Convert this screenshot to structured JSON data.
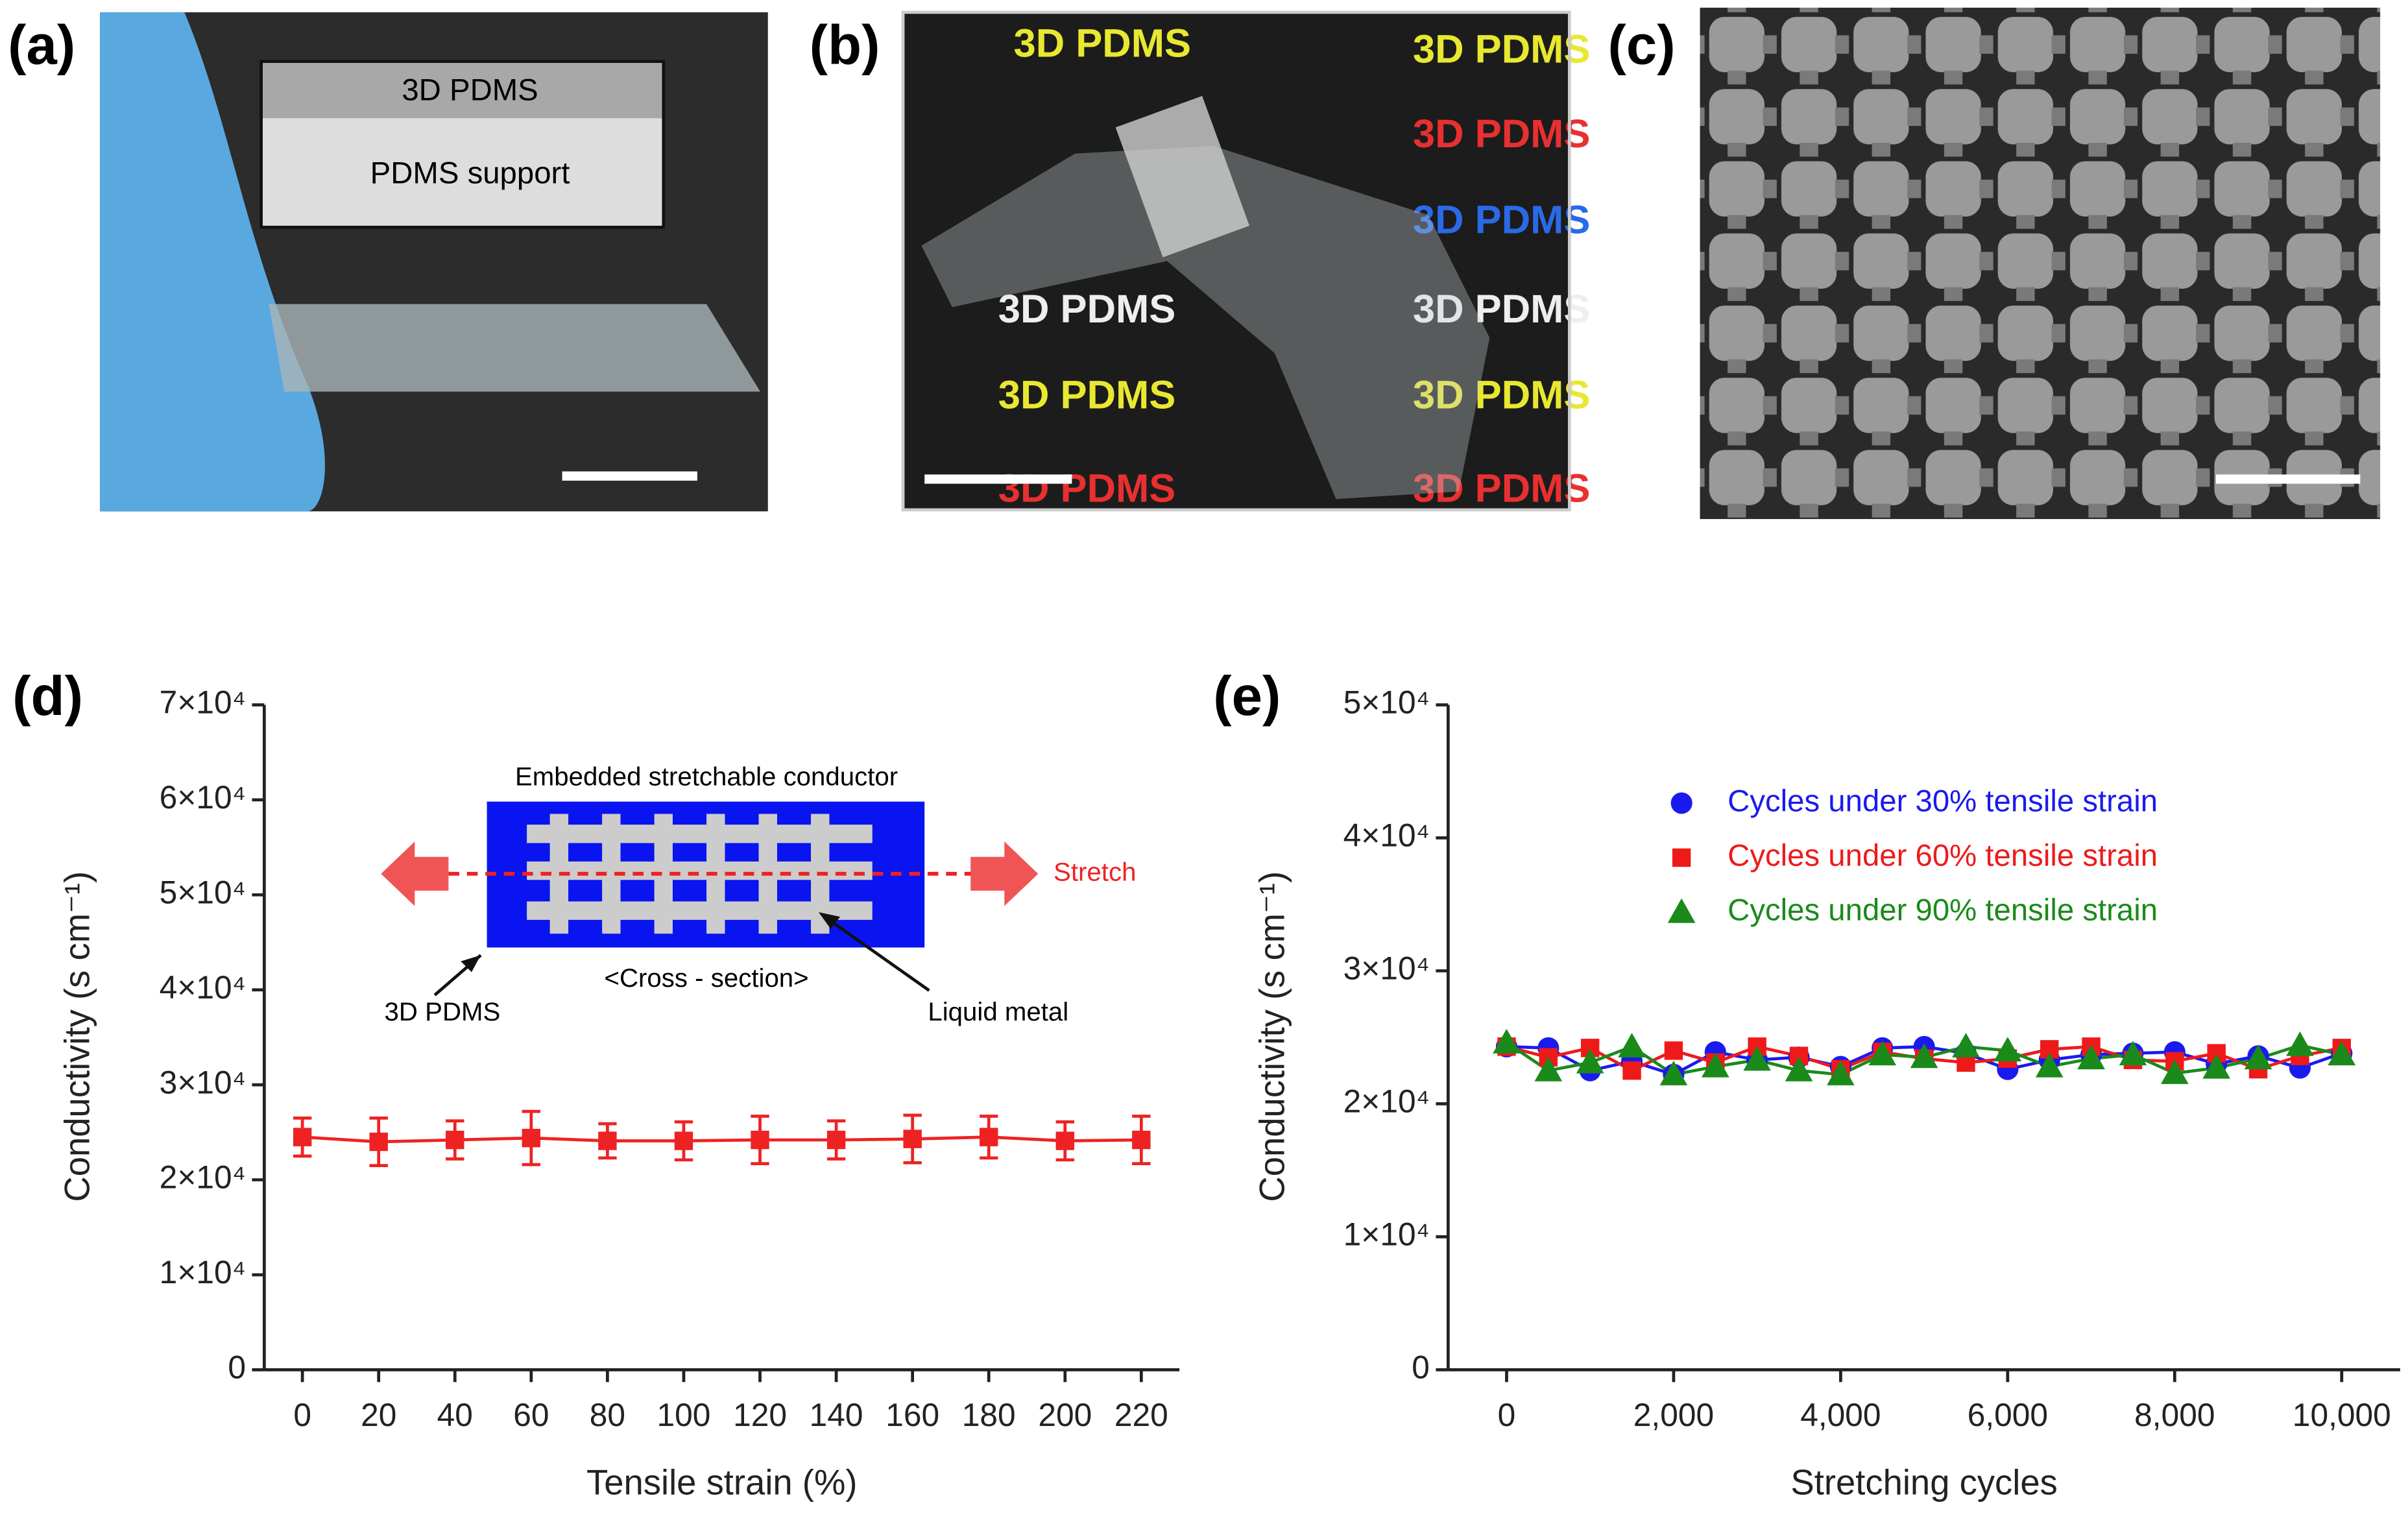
{
  "panels": {
    "a": {
      "label": "(a)",
      "inset": [
        "3D PDMS",
        "PDMS support"
      ]
    },
    "b": {
      "label": "(b)",
      "overlay_text": "3D PDMS"
    },
    "c": {
      "label": "(c)"
    },
    "d": {
      "label": "(d)"
    },
    "e": {
      "label": "(e)"
    }
  },
  "chart_data": [
    {
      "type": "line",
      "x_label": "Tensile strain (%)",
      "y_label": "Conductivity (s cm⁻¹)",
      "marker": "square",
      "color": "#ee2222",
      "x": [
        0,
        20,
        40,
        60,
        80,
        100,
        120,
        140,
        160,
        180,
        200,
        220
      ],
      "values": [
        24500,
        24000,
        24200,
        24400,
        24100,
        24100,
        24200,
        24200,
        24300,
        24500,
        24100,
        24200
      ],
      "errors": [
        2000,
        2500,
        2000,
        2800,
        1800,
        2000,
        2500,
        2000,
        2500,
        2200,
        2000,
        2500
      ],
      "xlim": [
        -10,
        230
      ],
      "xticks": [
        0,
        20,
        40,
        60,
        80,
        100,
        120,
        140,
        160,
        180,
        200,
        220
      ],
      "ylim": [
        0,
        70000
      ],
      "yticks": [
        0,
        {
          "value": 10000,
          "label": "1×10⁴"
        },
        {
          "value": 20000,
          "label": "2×10⁴"
        },
        {
          "value": 30000,
          "label": "3×10⁴"
        },
        {
          "value": 40000,
          "label": "4×10⁴"
        },
        {
          "value": 50000,
          "label": "5×10⁴"
        },
        {
          "value": 60000,
          "label": "6×10⁴"
        },
        {
          "value": 70000,
          "label": "7×10⁴"
        }
      ],
      "annotations": [
        "Embedded stretchable conductor",
        "Stretch",
        "3D PDMS",
        "<Cross - section>",
        "Liquid metal"
      ]
    },
    {
      "type": "line",
      "x_label": "Stretching cycles",
      "y_label": "Conductivity (s cm⁻¹)",
      "x": [
        0,
        500,
        1000,
        1500,
        2000,
        2500,
        3000,
        3500,
        4000,
        4500,
        5000,
        5500,
        6000,
        6500,
        7000,
        7500,
        8000,
        8500,
        9000,
        9500,
        10000
      ],
      "series": [
        {
          "name": "Cycles under 30% tensile strain",
          "color": "#1a1aee",
          "marker": "circle",
          "values": [
            24300,
            24200,
            22500,
            23200,
            22200,
            23900,
            23300,
            23500,
            22800,
            24200,
            24300,
            23800,
            22600,
            23300,
            23700,
            23800,
            23900,
            23000,
            23600,
            22700,
            23800
          ]
        },
        {
          "name": "Cycles under 60% tensile strain",
          "color": "#ee1a1a",
          "marker": "square",
          "values": [
            24300,
            23500,
            24200,
            22500,
            24000,
            23100,
            24300,
            23600,
            22600,
            23900,
            23400,
            23100,
            23400,
            24100,
            24300,
            23300,
            23200,
            23800,
            22600,
            23600,
            24200
          ]
        },
        {
          "name": "Cycles under 90% tensile strain",
          "color": "#1a8a1a",
          "marker": "triangle",
          "values": [
            24600,
            22500,
            23100,
            24300,
            22200,
            22800,
            23300,
            22500,
            22200,
            23700,
            23500,
            24300,
            24000,
            22800,
            23400,
            23700,
            22300,
            22700,
            23400,
            24400,
            23700
          ]
        }
      ],
      "xlim": [
        -700,
        10700
      ],
      "xticks": [
        0,
        {
          "value": 2000,
          "label": "2,000"
        },
        {
          "value": 4000,
          "label": "4,000"
        },
        {
          "value": 6000,
          "label": "6,000"
        },
        {
          "value": 8000,
          "label": "8,000"
        },
        {
          "value": 10000,
          "label": "10,000"
        }
      ],
      "ylim": [
        0,
        50000
      ],
      "yticks": [
        0,
        {
          "value": 10000,
          "label": "1×10⁴"
        },
        {
          "value": 20000,
          "label": "2×10⁴"
        },
        {
          "value": 30000,
          "label": "3×10⁴"
        },
        {
          "value": 40000,
          "label": "4×10⁴"
        },
        {
          "value": 50000,
          "label": "5×10⁴"
        }
      ]
    }
  ]
}
